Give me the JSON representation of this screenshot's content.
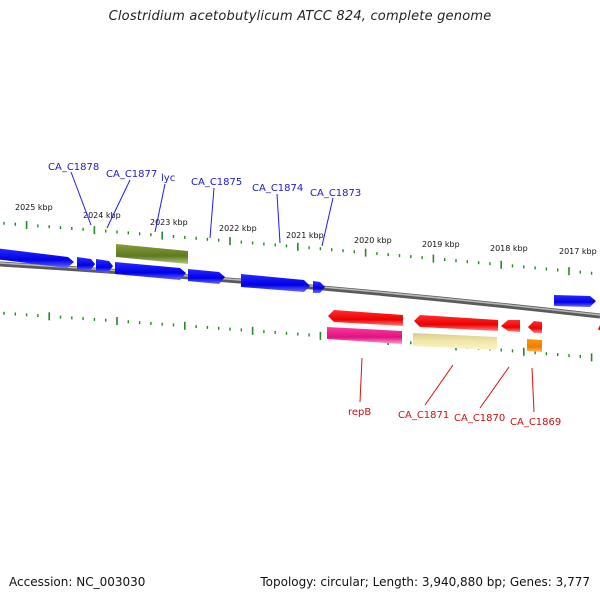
{
  "title": "Clostridium acetobutylicum ATCC 824, complete genome",
  "footer": {
    "accession": "Accession: NC_003030",
    "summary": "Topology: circular; Length: 3,940,880 bp; Genes: 3,777"
  },
  "colors": {
    "backbone": "#888888",
    "forward_gene": "#0000ee",
    "reverse_gene": "#ee0000",
    "tick": "#228b22",
    "forward_label": "#0000cc",
    "reverse_label": "#cc0000"
  },
  "scale_labels": [
    "2025 kbp",
    "2024 kbp",
    "2023 kbp",
    "2022 kbp",
    "2021 kbp",
    "2020 kbp",
    "2019 kbp",
    "2018 kbp",
    "2017 kbp"
  ],
  "forward_labels": [
    "CA_C1878",
    "CA_C1877",
    "lyc",
    "CA_C1875",
    "CA_C1874",
    "CA_C1873"
  ],
  "reverse_labels": [
    "repB",
    "CA_C1871",
    "CA_C1870",
    "CA_C1869"
  ]
}
